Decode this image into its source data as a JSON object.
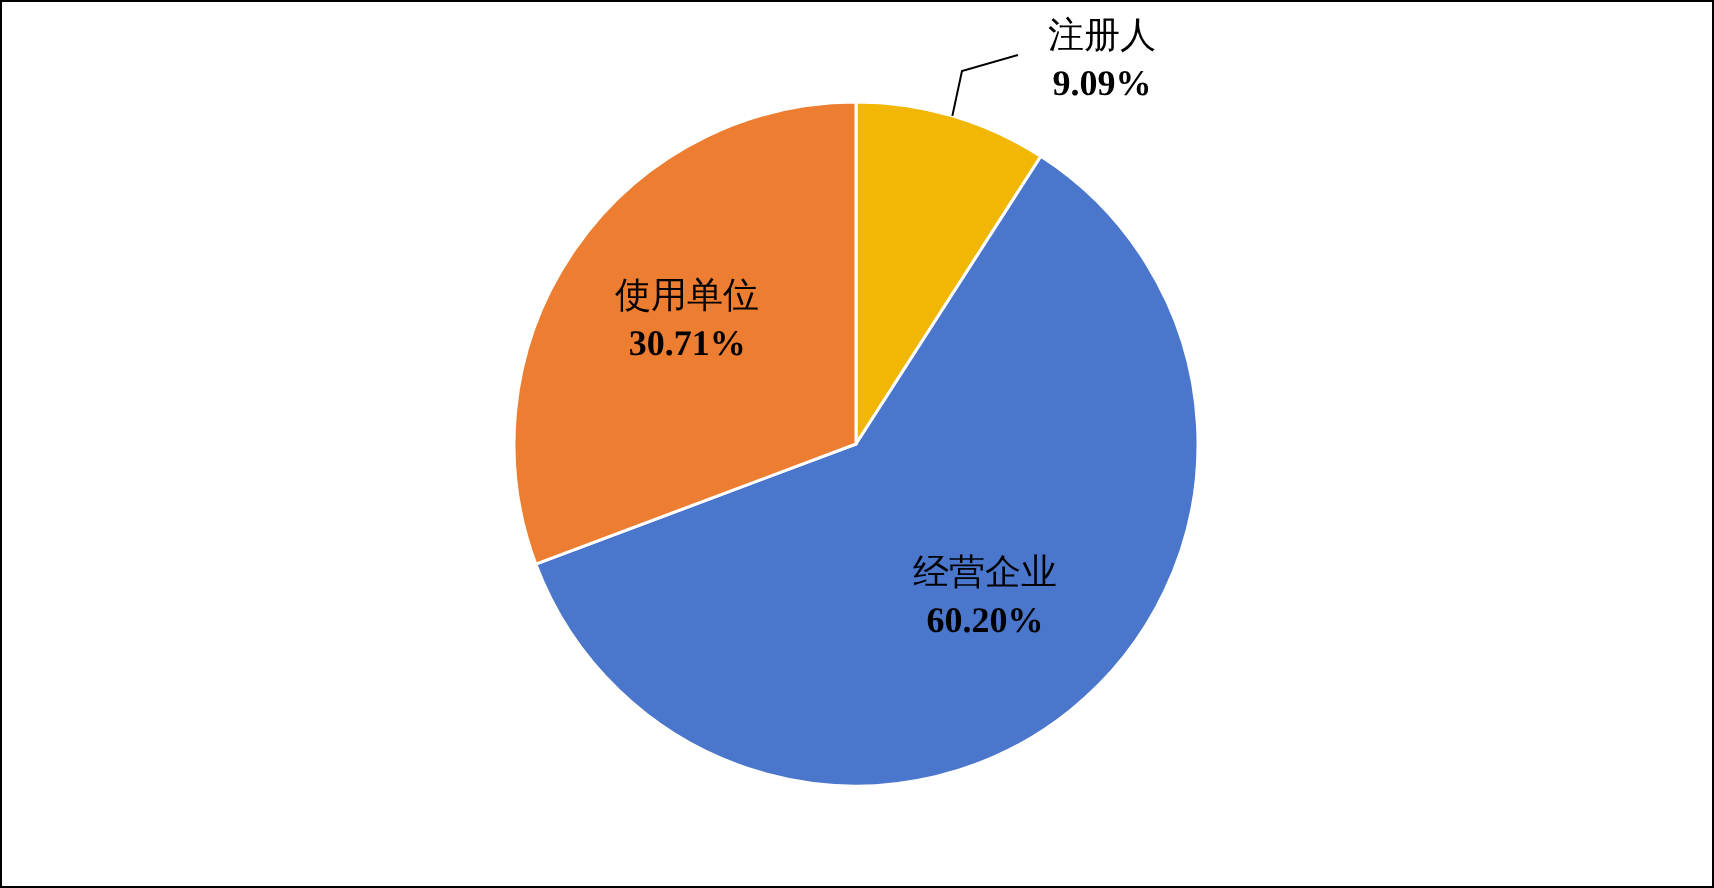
{
  "chart_data": {
    "type": "pie",
    "categories": [
      "注册人",
      "经营企业",
      "使用单位"
    ],
    "values": [
      9.09,
      60.2,
      30.71
    ],
    "value_labels": [
      "9.09%",
      "60.20%",
      "30.71%"
    ],
    "colors": [
      "#f2b705",
      "#4a76cc",
      "#ed7d31"
    ]
  }
}
